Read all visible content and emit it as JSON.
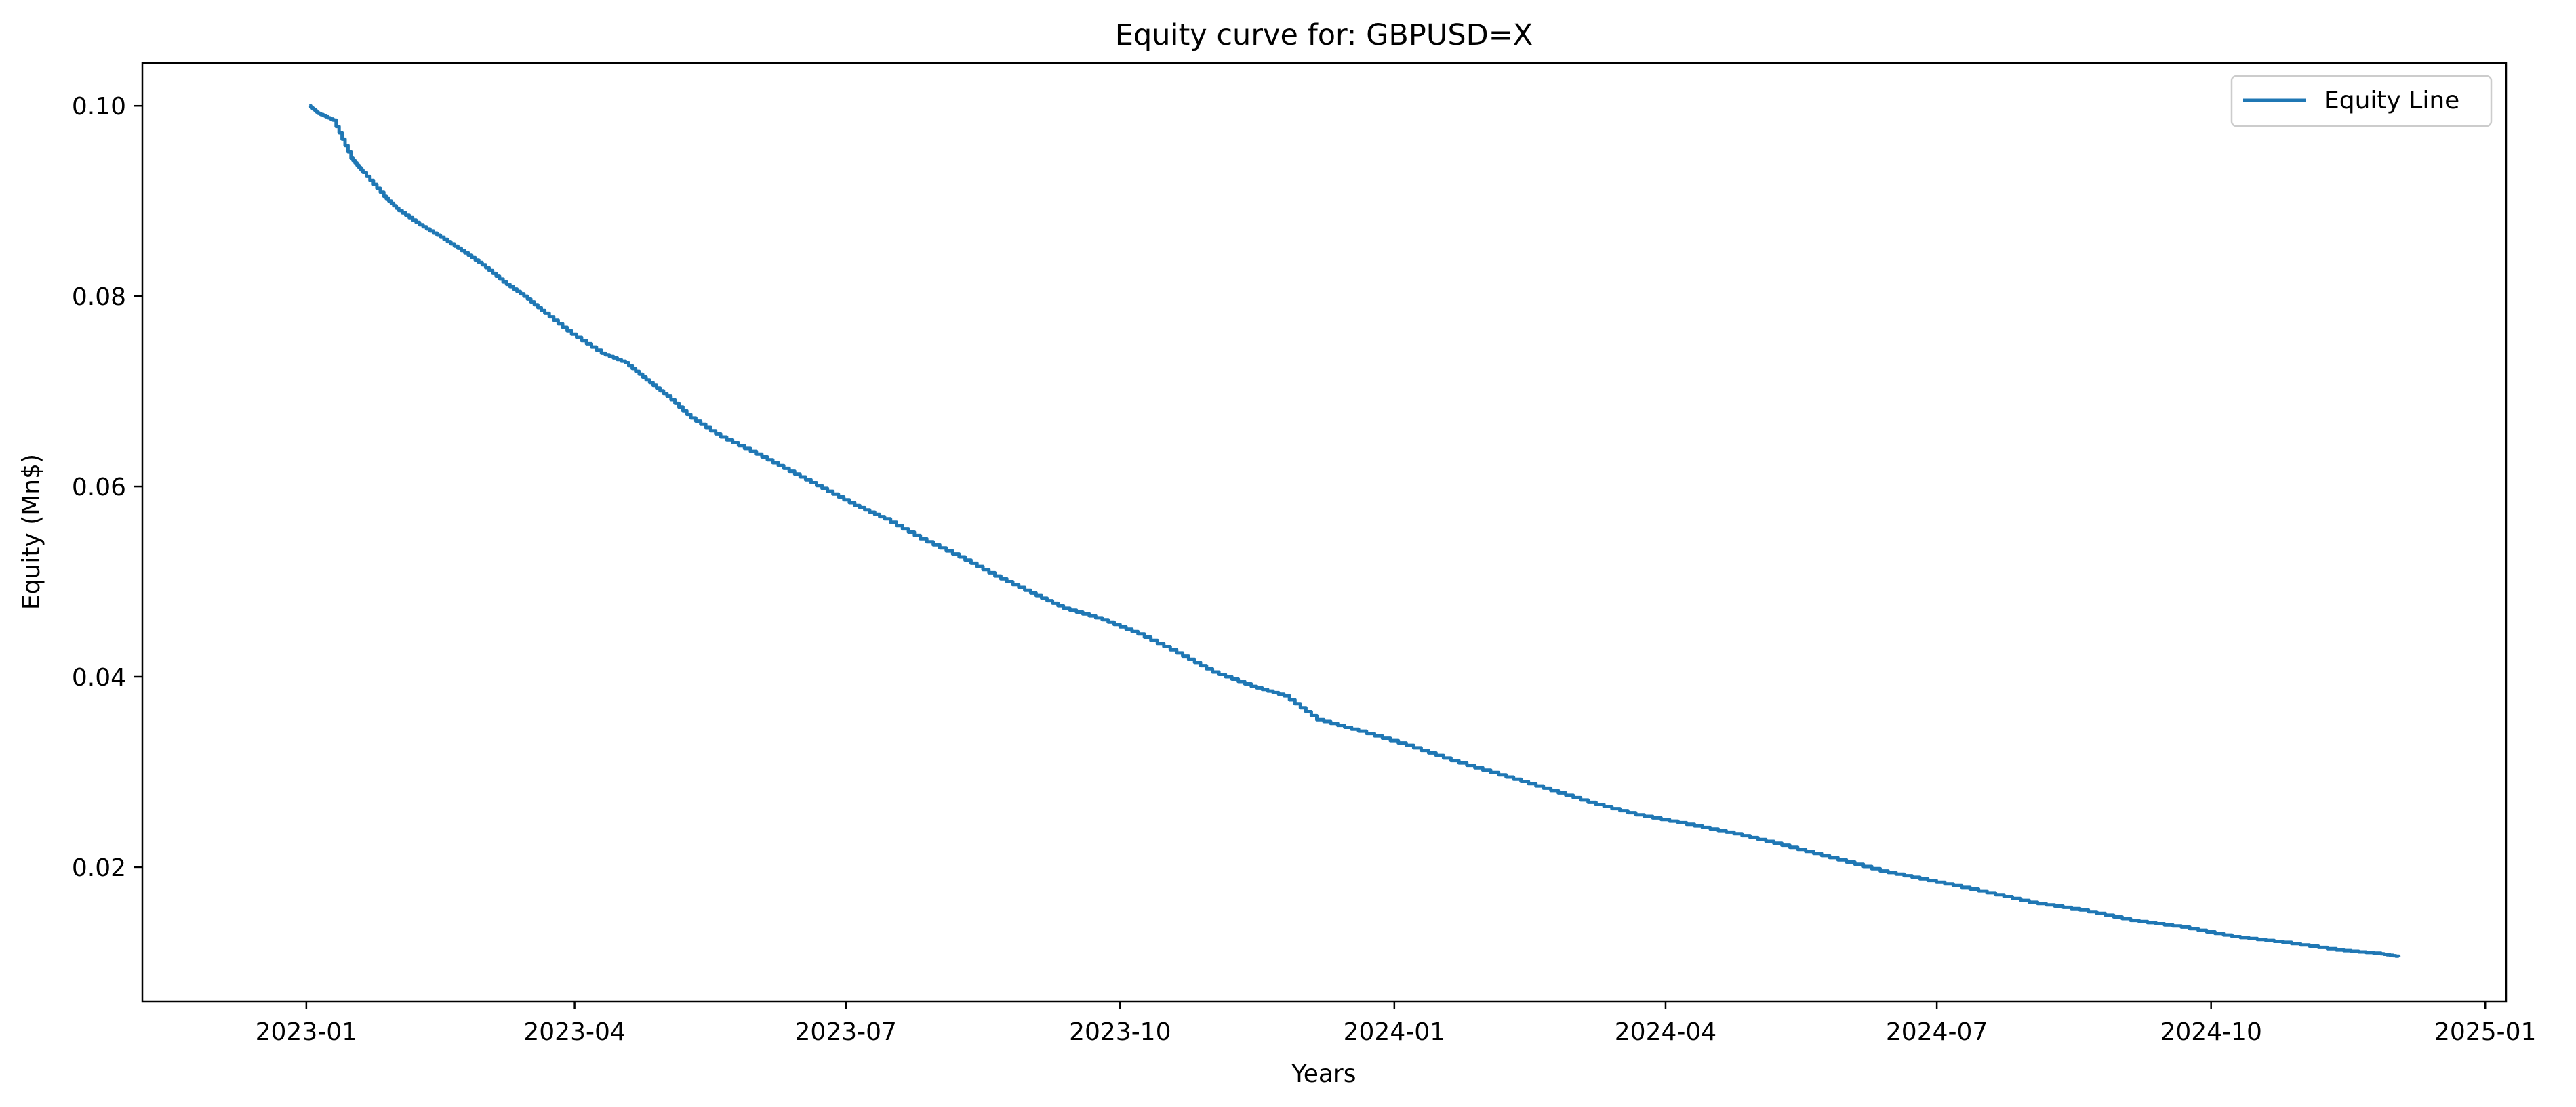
{
  "chart_data": {
    "type": "line",
    "title": "Equity curve for: GBPUSD=X",
    "xlabel": "Years",
    "ylabel": "Equity (Mn$)",
    "x_tick_labels": [
      "2023-01",
      "2023-04",
      "2023-07",
      "2023-10",
      "2024-01",
      "2024-04",
      "2024-07",
      "2024-10",
      "2025-01"
    ],
    "x_ticks": [
      "2023-01-01",
      "2023-04-01",
      "2023-07-01",
      "2023-10-01",
      "2024-01-01",
      "2024-04-01",
      "2024-07-01",
      "2024-10-01",
      "2025-01-01"
    ],
    "y_tick_labels": [
      "0.02",
      "0.04",
      "0.06",
      "0.08",
      "0.10"
    ],
    "y_ticks": [
      0.02,
      0.04,
      0.06,
      0.08,
      0.1
    ],
    "xlim": [
      "2022-11-07",
      "2025-01-08"
    ],
    "ylim": [
      0.0059,
      0.1045
    ],
    "grid": false,
    "legend_position": "top-right",
    "color": "#1f77b4",
    "series": [
      {
        "name": "Equity Line",
        "x": [
          "2023-01-02",
          "2023-01-05",
          "2023-01-10",
          "2023-01-16",
          "2023-01-20",
          "2023-01-27",
          "2023-02-01",
          "2023-02-08",
          "2023-02-15",
          "2023-02-22",
          "2023-03-01",
          "2023-03-08",
          "2023-03-15",
          "2023-03-22",
          "2023-03-31",
          "2023-04-10",
          "2023-04-18",
          "2023-04-25",
          "2023-05-02",
          "2023-05-10",
          "2023-05-20",
          "2023-06-01",
          "2023-06-12",
          "2023-06-23",
          "2023-07-04",
          "2023-07-14",
          "2023-07-26",
          "2023-08-08",
          "2023-08-20",
          "2023-09-01",
          "2023-09-12",
          "2023-09-25",
          "2023-10-07",
          "2023-10-20",
          "2023-11-01",
          "2023-11-14",
          "2023-11-25",
          "2023-12-06",
          "2023-12-20",
          "2024-01-05",
          "2024-01-20",
          "2024-02-05",
          "2024-02-20",
          "2024-03-06",
          "2024-03-22",
          "2024-04-08",
          "2024-04-24",
          "2024-05-10",
          "2024-05-26",
          "2024-06-12",
          "2024-06-28",
          "2024-07-15",
          "2024-08-01",
          "2024-08-18",
          "2024-09-04",
          "2024-09-21",
          "2024-10-08",
          "2024-10-25",
          "2024-11-12",
          "2024-11-27",
          "2024-12-03"
        ],
        "y": [
          0.1,
          0.0992,
          0.0985,
          0.0945,
          0.093,
          0.0905,
          0.089,
          0.0875,
          0.0862,
          0.0848,
          0.0833,
          0.0815,
          0.08,
          0.0782,
          0.076,
          0.074,
          0.073,
          0.0712,
          0.0695,
          0.0672,
          0.0652,
          0.0634,
          0.0616,
          0.0598,
          0.058,
          0.0566,
          0.0545,
          0.0526,
          0.0506,
          0.0488,
          0.0472,
          0.046,
          0.0445,
          0.0425,
          0.0405,
          0.039,
          0.038,
          0.0355,
          0.0343,
          0.0328,
          0.0312,
          0.0297,
          0.0283,
          0.0268,
          0.0255,
          0.0245,
          0.0235,
          0.0223,
          0.021,
          0.0196,
          0.0186,
          0.0175,
          0.0163,
          0.0155,
          0.0144,
          0.0137,
          0.0127,
          0.0121,
          0.0113,
          0.0109,
          0.0106
        ]
      }
    ]
  }
}
